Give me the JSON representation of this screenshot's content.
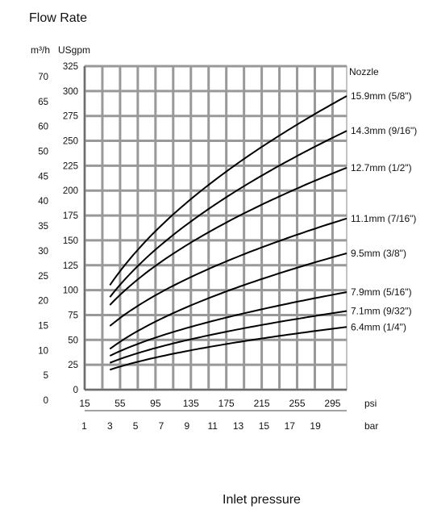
{
  "chart_data": {
    "type": "line",
    "title": "Flow Rate",
    "ylabel_metric": "m³/h",
    "ylabel_us": "USgpm",
    "legend_title": "Nozzle",
    "xlabel": "Inlet pressure",
    "x_unit_psi": "psi",
    "x_unit_bar": "bar",
    "xlim_psi": [
      15,
      311
    ],
    "ylim_usgpm": [
      0,
      325
    ],
    "grid": true,
    "psi_ticks": [
      15,
      55,
      95,
      135,
      175,
      215,
      255,
      295
    ],
    "bar_ticks": [
      1,
      3,
      5,
      7,
      9,
      11,
      13,
      15,
      17,
      19
    ],
    "usgpm_ticks": [
      0,
      25,
      50,
      75,
      100,
      125,
      150,
      175,
      200,
      225,
      250,
      275,
      300,
      325
    ],
    "m3h_ticks": [
      0,
      5,
      10,
      15,
      20,
      25,
      30,
      35,
      40,
      45,
      50,
      60,
      65,
      70
    ],
    "x": [
      43.5,
      311
    ],
    "series": [
      {
        "name": "15.9mm  (5/8\")",
        "values": [
          105,
          295
        ]
      },
      {
        "name": "14.3mm  (9/16\")",
        "values": [
          93,
          260
        ]
      },
      {
        "name": "12.7mm  (1/2\")",
        "values": [
          85,
          223
        ]
      },
      {
        "name": "11.1mm  (7/16\")",
        "values": [
          64,
          172
        ]
      },
      {
        "name": "9.5mm  (3/8\")",
        "values": [
          41,
          137
        ]
      },
      {
        "name": "7.9mm  (5/16\")",
        "values": [
          34,
          98
        ]
      },
      {
        "name": "7.1mm  (9/32\")",
        "values": [
          27,
          79
        ]
      },
      {
        "name": "6.4mm  (1/4\")",
        "values": [
          20,
          63
        ]
      }
    ]
  }
}
